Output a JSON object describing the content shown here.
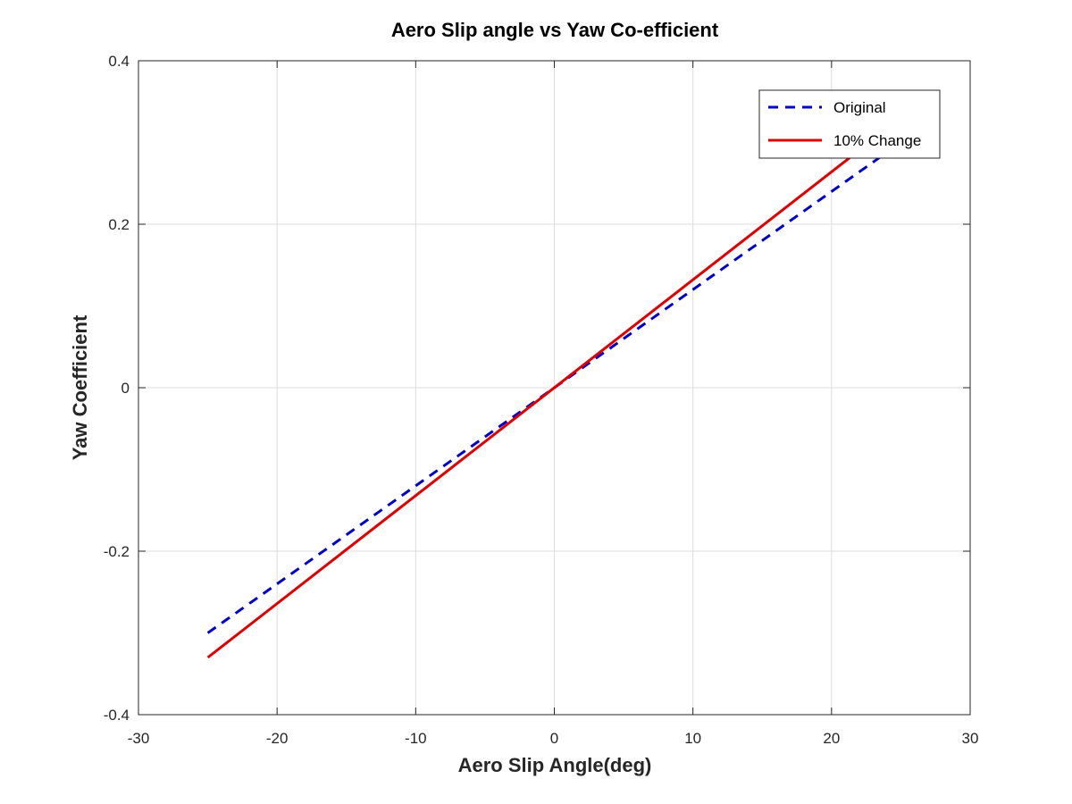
{
  "chart_data": {
    "type": "line",
    "title": "Aero Slip angle vs Yaw Co-efficient",
    "xlabel": "Aero Slip Angle(deg)",
    "ylabel": "Yaw Coefficient",
    "xlim": [
      -30,
      30
    ],
    "ylim": [
      -0.4,
      0.4
    ],
    "xticks": [
      -30,
      -20,
      -10,
      0,
      10,
      20,
      30
    ],
    "yticks": [
      -0.4,
      -0.2,
      0,
      0.2,
      0.4
    ],
    "xtick_labels": [
      "-30",
      "-20",
      "-10",
      "0",
      "10",
      "20",
      "30"
    ],
    "ytick_labels": [
      "-0.4",
      "-0.2",
      "0",
      "0.2",
      "0.4"
    ],
    "grid": true,
    "legend_position": "top-right",
    "series": [
      {
        "name": "Original",
        "style": "dashed",
        "color": "#0000cc",
        "x": [
          -25,
          25
        ],
        "y": [
          -0.3,
          0.3
        ]
      },
      {
        "name": "10% Change",
        "style": "solid",
        "color": "#e00000",
        "x": [
          -25,
          22.5
        ],
        "y": [
          -0.33,
          0.297
        ]
      }
    ]
  }
}
